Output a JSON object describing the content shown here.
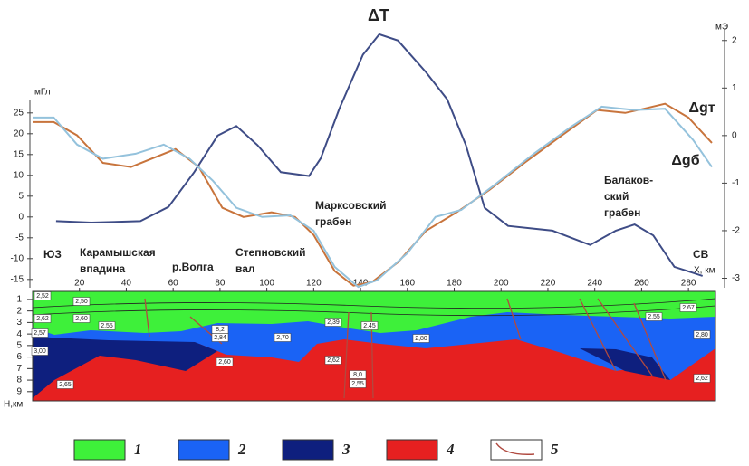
{
  "chart_data": {
    "type": "line",
    "xlabel": "X, км",
    "xlim": [
      0,
      290
    ],
    "xticks": [
      20,
      40,
      60,
      80,
      100,
      120,
      140,
      160,
      180,
      200,
      220,
      240,
      260,
      280
    ],
    "ylabel": "мГл",
    "ylim": [
      -17,
      28
    ],
    "yticks": [
      -15,
      -10,
      -5,
      0,
      5,
      10,
      15,
      20,
      25
    ],
    "y2label": "мЭ",
    "y2lim": [
      -3.2,
      2.3
    ],
    "y2ticks": [
      -3,
      -2,
      -1,
      0,
      1,
      2
    ],
    "series": [
      {
        "name": "ΔT",
        "color": "#3e4c86",
        "axis": "y2",
        "x": [
          10,
          25,
          46,
          58,
          69,
          79,
          87,
          96,
          106,
          118,
          123,
          131,
          141,
          148,
          156,
          168,
          177,
          185,
          193,
          203,
          222,
          238,
          249,
          257,
          265,
          274,
          286
        ],
        "values": [
          -1.8,
          -1.83,
          -1.8,
          -1.5,
          -0.77,
          0,
          0.2,
          -0.2,
          -0.77,
          -0.85,
          -0.48,
          0.57,
          1.7,
          2.13,
          2.0,
          1.33,
          0.76,
          -0.2,
          -1.52,
          -1.9,
          -2.0,
          -2.3,
          -2.0,
          -1.87,
          -2.1,
          -2.76,
          -2.95
        ]
      },
      {
        "name": "Δgт",
        "color": "#c8743c",
        "axis": "y",
        "x": [
          0,
          9,
          19,
          30,
          42,
          61,
          71,
          81,
          90,
          102,
          112,
          120,
          129,
          137,
          145,
          156,
          168,
          181,
          195,
          210,
          226,
          241,
          253,
          261,
          270,
          280,
          290
        ],
        "values": [
          22.8,
          22.8,
          19.6,
          13,
          12,
          16.3,
          12,
          2.2,
          0,
          1.1,
          0,
          -4.3,
          -13,
          -16.5,
          -15.6,
          -10.9,
          -3.3,
          1.1,
          6.5,
          13,
          19.6,
          25.7,
          25,
          26,
          27.2,
          23.9,
          17.8
        ]
      },
      {
        "name": "Δgб",
        "color": "#94c2dc",
        "axis": "y",
        "x": [
          0,
          9,
          19,
          30,
          44,
          56,
          67,
          77,
          87,
          98,
          110,
          120,
          129,
          139,
          147,
          160,
          172,
          183,
          197,
          214,
          230,
          243,
          257,
          270,
          282,
          290
        ],
        "values": [
          23.9,
          23.9,
          17.4,
          14,
          15.2,
          17.4,
          14,
          8.7,
          2.2,
          0,
          0.4,
          -3.3,
          -12,
          -16.8,
          -15.2,
          -8.7,
          0,
          1.7,
          7.6,
          15.2,
          21.7,
          26.5,
          25.7,
          26,
          18.5,
          12
        ]
      }
    ],
    "annotations": [
      {
        "lines": [
          "ЮЗ"
        ]
      },
      {
        "lines": [
          "Карамышская",
          "впадина"
        ]
      },
      {
        "lines": [
          "р.Волга"
        ]
      },
      {
        "lines": [
          "Степновский",
          "вал"
        ]
      },
      {
        "lines": [
          "Марксовский",
          "грабен"
        ]
      },
      {
        "lines": [
          "Балаков-",
          "ский",
          "грабен"
        ]
      },
      {
        "lines": [
          "СВ"
        ]
      }
    ]
  },
  "section": {
    "ylabel": "H,км",
    "ylim": [
      0.3,
      9.8
    ],
    "yticks": [
      1,
      2,
      3,
      4,
      5,
      6,
      7,
      8,
      9
    ],
    "labels": [
      "2,52",
      "2,50",
      "2,62",
      "2,60",
      "2,55",
      "2,57",
      "3,00",
      "2,65",
      "8,2",
      "2,84",
      "2,60",
      "2,70",
      "2,39",
      "2,45",
      "2,62",
      "8,0",
      "2,55",
      "2,80",
      "2,55",
      "2,67",
      "2,80",
      "2,62"
    ]
  },
  "legend": [
    {
      "label": "1",
      "color": "#3ef03a"
    },
    {
      "label": "2",
      "color": "#1a63f5"
    },
    {
      "label": "3",
      "color": "#0e1f7e"
    },
    {
      "label": "4",
      "color": "#e62020"
    },
    {
      "label": "5",
      "color": "#b04a40"
    }
  ]
}
